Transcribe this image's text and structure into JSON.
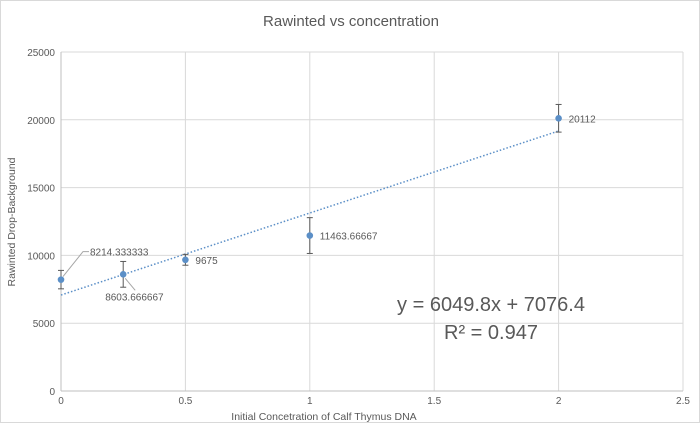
{
  "chart_data": {
    "type": "scatter",
    "title": "Rawinted vs concentration",
    "xlabel": "Initial Concetration of Calf Thymus DNA",
    "ylabel": "Rawinted Drop-Background",
    "xlim": [
      0,
      2.5
    ],
    "ylim": [
      0,
      25000
    ],
    "xticks": [
      0,
      0.5,
      1,
      1.5,
      2,
      2.5
    ],
    "xtick_labels": [
      "0",
      "0.5",
      "1",
      "1.5",
      "2",
      "2.5"
    ],
    "yticks": [
      0,
      5000,
      10000,
      15000,
      20000,
      25000
    ],
    "ytick_labels": [
      "0",
      "5000",
      "10000",
      "15000",
      "20000",
      "25000"
    ],
    "grid": true,
    "series": [
      {
        "name": "Rawinted",
        "color": "#5b8fc7",
        "x": [
          0,
          0.25,
          0.5,
          1,
          2
        ],
        "y": [
          8214.333333,
          8603.666667,
          9675,
          11463.66667,
          20112
        ],
        "error": [
          680,
          950,
          400,
          1320,
          1020
        ],
        "labels": [
          "8214.333333",
          "8603.666667",
          "9675",
          "11463.66667",
          "20112"
        ]
      }
    ],
    "trendline": {
      "type": "linear",
      "slope": 6049.8,
      "intercept": 7076.4,
      "color": "#5b8fc7",
      "equation": "y = 6049.8x + 7076.4",
      "r_squared": "R² = 0.947"
    }
  }
}
